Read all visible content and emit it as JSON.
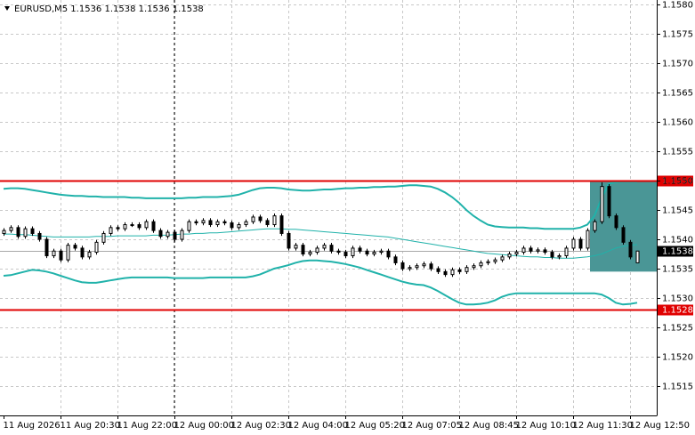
{
  "chart_data": {
    "type": "candlestick",
    "title": "EURUSD,M5  1.1536 1.1538 1.1536 1.1538",
    "categories": [
      "11 Aug 2026",
      null,
      null,
      null,
      null,
      null,
      null,
      null,
      "11 Aug 20:30",
      null,
      null,
      null,
      null,
      null,
      null,
      null,
      "11 Aug 22:00",
      null,
      null,
      null,
      null,
      null,
      null,
      null,
      "12 Aug 00:00",
      null,
      null,
      null,
      null,
      null,
      null,
      null,
      "12 Aug 02:30",
      null,
      null,
      null,
      null,
      null,
      null,
      null,
      "12 Aug 04:00",
      null,
      null,
      null,
      null,
      null,
      null,
      null,
      "12 Aug 05:20",
      null,
      null,
      null,
      null,
      null,
      null,
      null,
      "12 Aug 07:05",
      null,
      null,
      null,
      null,
      null,
      null,
      null,
      "12 Aug 08:45",
      null,
      null,
      null,
      null,
      null,
      null,
      null,
      "12 Aug 10:10",
      null,
      null,
      null,
      null,
      null,
      null,
      null,
      "12 Aug 11:30",
      null,
      null,
      null,
      null,
      null,
      null,
      null,
      "12 Aug 12:50",
      null
    ],
    "ohlc": [
      [
        1.1541,
        1.15419,
        1.15406,
        1.15415
      ],
      [
        1.15415,
        1.15424,
        1.15411,
        1.1542
      ],
      [
        1.1542,
        1.15424,
        1.15401,
        1.15405
      ],
      [
        1.15405,
        1.15422,
        1.15401,
        1.15418
      ],
      [
        1.15418,
        1.15422,
        1.15406,
        1.1541
      ],
      [
        1.1541,
        1.15414,
        1.15396,
        1.154
      ],
      [
        1.154,
        1.15404,
        1.15368,
        1.15372
      ],
      [
        1.15372,
        1.15384,
        1.15368,
        1.1538
      ],
      [
        1.1538,
        1.15384,
        1.15361,
        1.15365
      ],
      [
        1.15365,
        1.15394,
        1.15361,
        1.1539
      ],
      [
        1.1539,
        1.15394,
        1.15381,
        1.15385
      ],
      [
        1.15385,
        1.15389,
        1.15366,
        1.1537
      ],
      [
        1.1537,
        1.15382,
        1.15366,
        1.15378
      ],
      [
        1.15378,
        1.15399,
        1.15374,
        1.15395
      ],
      [
        1.15395,
        1.15414,
        1.15391,
        1.1541
      ],
      [
        1.1541,
        1.15424,
        1.15406,
        1.1542
      ],
      [
        1.1542,
        1.15424,
        1.15414,
        1.15418
      ],
      [
        1.15418,
        1.15429,
        1.15414,
        1.15425
      ],
      [
        1.15425,
        1.15429,
        1.15421,
        1.15425
      ],
      [
        1.15425,
        1.15429,
        1.15416,
        1.1542
      ],
      [
        1.1542,
        1.15434,
        1.15416,
        1.1543
      ],
      [
        1.1543,
        1.15434,
        1.15411,
        1.15415
      ],
      [
        1.15415,
        1.15419,
        1.15401,
        1.15405
      ],
      [
        1.15405,
        1.15416,
        1.15401,
        1.15412
      ],
      [
        1.15412,
        1.15416,
        1.15396,
        1.154
      ],
      [
        1.154,
        1.15419,
        1.15396,
        1.15415
      ],
      [
        1.15415,
        1.15434,
        1.15411,
        1.1543
      ],
      [
        1.1543,
        1.15434,
        1.15424,
        1.15428
      ],
      [
        1.15428,
        1.15436,
        1.15424,
        1.15432
      ],
      [
        1.15432,
        1.15436,
        1.15421,
        1.15425
      ],
      [
        1.15425,
        1.15434,
        1.15421,
        1.1543
      ],
      [
        1.1543,
        1.15434,
        1.15424,
        1.15428
      ],
      [
        1.15428,
        1.15432,
        1.15416,
        1.1542
      ],
      [
        1.1542,
        1.15429,
        1.15416,
        1.15425
      ],
      [
        1.15425,
        1.15434,
        1.15421,
        1.1543
      ],
      [
        1.1543,
        1.15442,
        1.15426,
        1.15438
      ],
      [
        1.15438,
        1.15442,
        1.15428,
        1.15432
      ],
      [
        1.15432,
        1.15436,
        1.15421,
        1.15425
      ],
      [
        1.15425,
        1.15444,
        1.15421,
        1.1544
      ],
      [
        1.1544,
        1.15444,
        1.15406,
        1.1541
      ],
      [
        1.1541,
        1.15414,
        1.15381,
        1.15385
      ],
      [
        1.15385,
        1.15394,
        1.15381,
        1.1539
      ],
      [
        1.1539,
        1.15394,
        1.15371,
        1.15375
      ],
      [
        1.15375,
        1.15382,
        1.15371,
        1.15378
      ],
      [
        1.15378,
        1.15389,
        1.15374,
        1.15385
      ],
      [
        1.15385,
        1.15394,
        1.15381,
        1.1539
      ],
      [
        1.1539,
        1.15394,
        1.15376,
        1.1538
      ],
      [
        1.1538,
        1.15384,
        1.15374,
        1.15378
      ],
      [
        1.15378,
        1.15382,
        1.15368,
        1.15372
      ],
      [
        1.15372,
        1.15389,
        1.15368,
        1.15385
      ],
      [
        1.15385,
        1.15389,
        1.15376,
        1.1538
      ],
      [
        1.1538,
        1.15384,
        1.15371,
        1.15375
      ],
      [
        1.15375,
        1.15382,
        1.15371,
        1.15378
      ],
      [
        1.15378,
        1.15384,
        1.15374,
        1.1538
      ],
      [
        1.1538,
        1.15384,
        1.15366,
        1.1537
      ],
      [
        1.1537,
        1.15374,
        1.15356,
        1.1536
      ],
      [
        1.1536,
        1.15364,
        1.15346,
        1.1535
      ],
      [
        1.1535,
        1.15356,
        1.15346,
        1.15352
      ],
      [
        1.15352,
        1.15359,
        1.15348,
        1.15355
      ],
      [
        1.15355,
        1.15362,
        1.15351,
        1.15358
      ],
      [
        1.15358,
        1.15362,
        1.15346,
        1.1535
      ],
      [
        1.1535,
        1.15354,
        1.15341,
        1.15345
      ],
      [
        1.15345,
        1.15349,
        1.15336,
        1.1534
      ],
      [
        1.1534,
        1.15352,
        1.15336,
        1.15348
      ],
      [
        1.15348,
        1.15352,
        1.15341,
        1.15345
      ],
      [
        1.15345,
        1.15356,
        1.15341,
        1.15352
      ],
      [
        1.15352,
        1.15359,
        1.15348,
        1.15355
      ],
      [
        1.15355,
        1.15364,
        1.15351,
        1.1536
      ],
      [
        1.1536,
        1.15366,
        1.15356,
        1.15362
      ],
      [
        1.15362,
        1.15369,
        1.15358,
        1.15365
      ],
      [
        1.15365,
        1.15374,
        1.15361,
        1.1537
      ],
      [
        1.1537,
        1.15379,
        1.15366,
        1.15375
      ],
      [
        1.15375,
        1.15382,
        1.15371,
        1.15378
      ],
      [
        1.15378,
        1.15389,
        1.15374,
        1.15385
      ],
      [
        1.15385,
        1.15389,
        1.15376,
        1.1538
      ],
      [
        1.1538,
        1.15386,
        1.15376,
        1.15382
      ],
      [
        1.15382,
        1.15386,
        1.15374,
        1.15378
      ],
      [
        1.15378,
        1.15382,
        1.15366,
        1.1537
      ],
      [
        1.1537,
        1.15376,
        1.15366,
        1.15372
      ],
      [
        1.15372,
        1.15389,
        1.15368,
        1.15385
      ],
      [
        1.15385,
        1.15404,
        1.15381,
        1.154
      ],
      [
        1.154,
        1.15404,
        1.15381,
        1.15385
      ],
      [
        1.15385,
        1.15419,
        1.15381,
        1.15415
      ],
      [
        1.15415,
        1.15434,
        1.15411,
        1.1543
      ],
      [
        1.1543,
        1.15497,
        1.15426,
        1.1549
      ],
      [
        1.1549,
        1.15494,
        1.15436,
        1.1544
      ],
      [
        1.1544,
        1.15444,
        1.15416,
        1.1542
      ],
      [
        1.1542,
        1.15424,
        1.15391,
        1.15395
      ],
      [
        1.15395,
        1.15399,
        1.15366,
        1.1537
      ],
      [
        1.1536,
        1.1538,
        1.1536,
        1.1538
      ]
    ],
    "bull_color": "#ffffff",
    "bear_color": "#000000",
    "wick_color": "#000000",
    "bands": [
      {
        "color": "#20b2aa",
        "width": 2,
        "values": [
          1.15486,
          1.15487,
          1.15487,
          1.15486,
          1.15484,
          1.15482,
          1.1548,
          1.15478,
          1.15476,
          1.15475,
          1.15474,
          1.15474,
          1.15473,
          1.15473,
          1.15472,
          1.15472,
          1.15472,
          1.15472,
          1.15471,
          1.15471,
          1.1547,
          1.1547,
          1.1547,
          1.1547,
          1.1547,
          1.1547,
          1.15471,
          1.15471,
          1.15472,
          1.15472,
          1.15472,
          1.15473,
          1.15474,
          1.15476,
          1.1548,
          1.15484,
          1.15487,
          1.15488,
          1.15488,
          1.15487,
          1.15485,
          1.15484,
          1.15483,
          1.15483,
          1.15484,
          1.15485,
          1.15485,
          1.15486,
          1.15487,
          1.15487,
          1.15488,
          1.15488,
          1.15489,
          1.15489,
          1.1549,
          1.1549,
          1.15491,
          1.15492,
          1.15492,
          1.15491,
          1.1549,
          1.15486,
          1.1548,
          1.15472,
          1.15462,
          1.1545,
          1.1544,
          1.15432,
          1.15425,
          1.15422,
          1.15421,
          1.1542,
          1.1542,
          1.1542,
          1.15419,
          1.15419,
          1.15418,
          1.15418,
          1.15418,
          1.15418,
          1.15418,
          1.1542,
          1.15425,
          1.1544,
          1.1547,
          1.15495,
          1.15497,
          1.15498,
          1.15498,
          1.15498
        ]
      },
      {
        "color": "#20b2aa",
        "width": 1,
        "values": [
          1.15409,
          1.15409,
          1.15408,
          1.15408,
          1.15407,
          1.15406,
          1.15405,
          1.15404,
          1.15404,
          1.15404,
          1.15404,
          1.15404,
          1.15404,
          1.15405,
          1.15405,
          1.15405,
          1.15406,
          1.15406,
          1.15406,
          1.15406,
          1.15406,
          1.15407,
          1.15407,
          1.15407,
          1.15408,
          1.15409,
          1.15409,
          1.1541,
          1.1541,
          1.15411,
          1.15411,
          1.15412,
          1.15413,
          1.15414,
          1.15415,
          1.15416,
          1.15417,
          1.15418,
          1.15418,
          1.15418,
          1.15417,
          1.15417,
          1.15416,
          1.15415,
          1.15414,
          1.15413,
          1.15412,
          1.15411,
          1.1541,
          1.15409,
          1.15408,
          1.15407,
          1.15406,
          1.15405,
          1.15404,
          1.15402,
          1.154,
          1.15398,
          1.15396,
          1.15394,
          1.15392,
          1.1539,
          1.15388,
          1.15386,
          1.15384,
          1.15382,
          1.1538,
          1.15378,
          1.15376,
          1.15375,
          1.15374,
          1.15373,
          1.15372,
          1.15371,
          1.1537,
          1.1537,
          1.15369,
          1.15369,
          1.15368,
          1.15368,
          1.15368,
          1.15369,
          1.1537,
          1.15372,
          1.15375,
          1.1538,
          1.15385,
          1.15388,
          1.1539,
          1.15391
        ]
      },
      {
        "color": "#20b2aa",
        "width": 2,
        "values": [
          1.15338,
          1.15339,
          1.15342,
          1.15345,
          1.15348,
          1.15347,
          1.15345,
          1.15342,
          1.15338,
          1.15334,
          1.1533,
          1.15327,
          1.15326,
          1.15326,
          1.15328,
          1.1533,
          1.15332,
          1.15334,
          1.15335,
          1.15335,
          1.15335,
          1.15335,
          1.15335,
          1.15335,
          1.15334,
          1.15334,
          1.15334,
          1.15334,
          1.15334,
          1.15335,
          1.15335,
          1.15335,
          1.15335,
          1.15335,
          1.15335,
          1.15337,
          1.1534,
          1.15345,
          1.1535,
          1.15353,
          1.15356,
          1.1536,
          1.15363,
          1.15364,
          1.15364,
          1.15363,
          1.15362,
          1.1536,
          1.15358,
          1.15355,
          1.15352,
          1.15348,
          1.15344,
          1.1534,
          1.15336,
          1.15332,
          1.15328,
          1.15325,
          1.15323,
          1.15322,
          1.15318,
          1.15312,
          1.15305,
          1.15298,
          1.15292,
          1.15289,
          1.15289,
          1.1529,
          1.15292,
          1.15296,
          1.15302,
          1.15306,
          1.15308,
          1.15308,
          1.15308,
          1.15308,
          1.15308,
          1.15308,
          1.15308,
          1.15308,
          1.15308,
          1.15308,
          1.15308,
          1.15308,
          1.15306,
          1.153,
          1.15292,
          1.15289,
          1.1529,
          1.15292
        ]
      }
    ],
    "levels": [
      {
        "value": 1.155,
        "label": "1.1550"
      },
      {
        "value": 1.1528,
        "label": "1.1528"
      }
    ],
    "level_color": "#e00000",
    "current_price": {
      "value": 1.1538,
      "label": "1.1538"
    },
    "highlight": {
      "top": 1.155,
      "bottom": 1.15345,
      "color": "#4a9696"
    },
    "ylim": [
      1.151,
      1.1581
    ],
    "yticks": [
      1.1515,
      {
        "value": 1.152,
        "label": "1.1520"
      },
      1.1525,
      {
        "value": 1.153,
        "label": "1.1530"
      },
      1.1535,
      {
        "value": 1.154,
        "label": "1.1540"
      },
      1.1545,
      {
        "value": 1.155,
        "label": "1.1550"
      },
      1.1555,
      {
        "value": 1.156,
        "label": "1.1560"
      },
      1.1565,
      {
        "value": 1.157,
        "label": "1.1570"
      },
      1.1575,
      {
        "value": 1.158,
        "label": "1.1580"
      }
    ],
    "grid": true
  }
}
